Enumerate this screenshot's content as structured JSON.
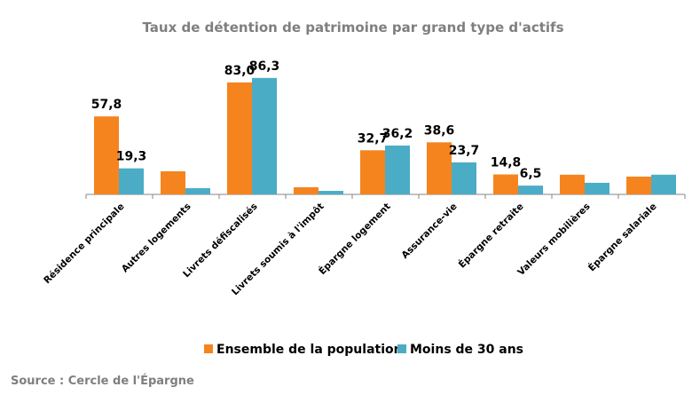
{
  "chart_data": {
    "type": "bar",
    "title": "Taux de détention de patrimoine par grand type d'actifs",
    "categories": [
      "Résidence principale",
      "Autres logements",
      "Livrets défiscalisés",
      "Livrets soumis à l'impôt",
      "Épargne  logement",
      "Assurance-vie",
      "Épargne retraite",
      "Valeurs mobilières",
      "Épargne salariale"
    ],
    "series": [
      {
        "name": "Ensemble de la population",
        "color": "#f5841f",
        "values": [
          57.8,
          17.1,
          83.0,
          5.3,
          32.7,
          38.6,
          14.8,
          14.6,
          13.2
        ],
        "labels": [
          "57,8",
          "",
          "83,0",
          "",
          "32,7",
          "38,6",
          "14,8",
          "",
          ""
        ]
      },
      {
        "name": "Moins de 30 ans",
        "color": "#4bacc6",
        "values": [
          19.3,
          4.6,
          86.3,
          2.6,
          36.2,
          23.7,
          6.5,
          8.6,
          14.6
        ],
        "labels": [
          "19,3",
          "",
          "86,3",
          "",
          "36,2",
          "23,7",
          "6,5",
          "",
          ""
        ]
      }
    ],
    "ylim": [
      0,
      90
    ],
    "grid": false,
    "legend": "bottom",
    "source": "Source : Cercle de l'Épargne"
  }
}
